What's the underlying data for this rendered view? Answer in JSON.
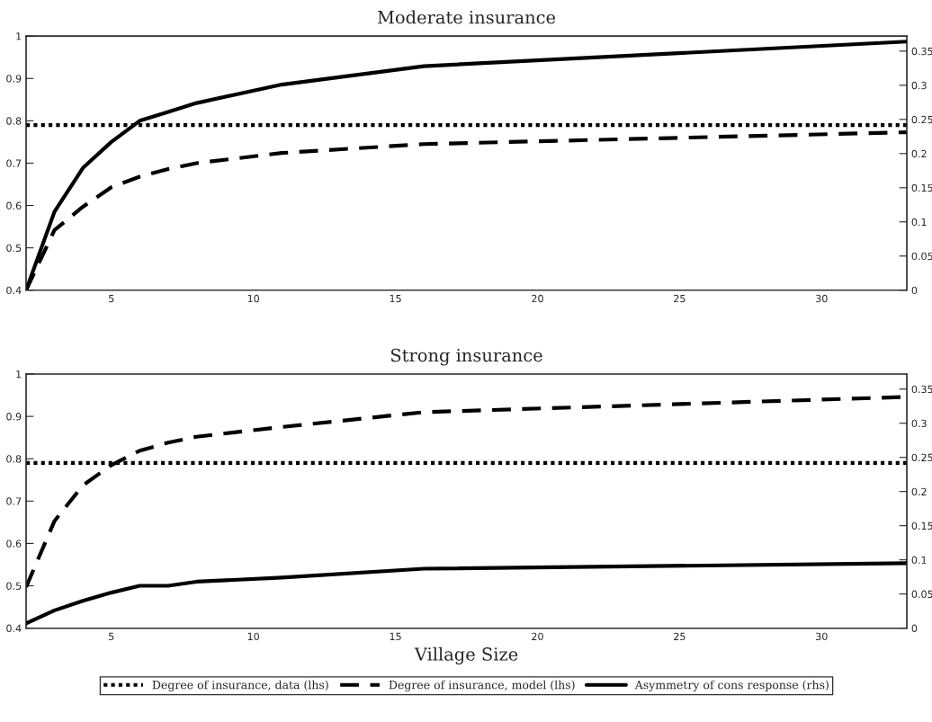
{
  "chart_data": [
    {
      "type": "line",
      "title": "Moderate insurance",
      "x": [
        2,
        3,
        4,
        5,
        6,
        7,
        8,
        11,
        16,
        33
      ],
      "xlim": [
        2,
        33
      ],
      "xticks": [
        5,
        10,
        15,
        20,
        25,
        30
      ],
      "ylim": [
        0.4,
        1
      ],
      "yticks": [
        0.4,
        0.5,
        0.6,
        0.7,
        0.8,
        0.9,
        1
      ],
      "y2lim": [
        0,
        0.372
      ],
      "y2ticks": [
        0,
        0.05,
        0.1,
        0.15,
        0.2,
        0.25,
        0.3,
        0.35
      ],
      "grid": false,
      "series": [
        {
          "color": "#000000",
          "line_style": "dotted",
          "values": [
            0.79,
            0.79,
            0.79,
            0.79,
            0.79,
            0.79,
            0.79,
            0.79,
            0.79,
            0.79
          ]
        },
        {
          "color": "#000000",
          "line_style": "dashed",
          "values": [
            0.4,
            0.542,
            0.597,
            0.643,
            0.668,
            0.686,
            0.7,
            0.724,
            0.745,
            0.773
          ]
        },
        {
          "color": "#000000",
          "line_style": "solid",
          "axis": "y2",
          "values": [
            0,
            0.115,
            0.179,
            0.217,
            0.248,
            0.261,
            0.274,
            0.301,
            0.328,
            0.364
          ]
        }
      ]
    },
    {
      "type": "line",
      "title": "Strong insurance",
      "xlabel": "Village Size",
      "x": [
        2,
        3,
        4,
        5,
        6,
        7,
        8,
        11,
        16,
        33
      ],
      "xlim": [
        2,
        33
      ],
      "xticks": [
        5,
        10,
        15,
        20,
        25,
        30
      ],
      "ylim": [
        0.4,
        1
      ],
      "yticks": [
        0.4,
        0.5,
        0.6,
        0.7,
        0.8,
        0.9,
        1
      ],
      "y2lim": [
        0,
        0.372
      ],
      "y2ticks": [
        0,
        0.05,
        0.1,
        0.15,
        0.2,
        0.25,
        0.3,
        0.35
      ],
      "grid": false,
      "legend": "bottom",
      "series": [
        {
          "name": "Degree of insurance, data (lhs)",
          "color": "#000000",
          "line_style": "dotted",
          "values": [
            0.79,
            0.79,
            0.79,
            0.79,
            0.79,
            0.79,
            0.79,
            0.79,
            0.79,
            0.79
          ]
        },
        {
          "name": "Degree of insurance, model (lhs)",
          "color": "#000000",
          "line_style": "dashed",
          "values": [
            0.497,
            0.653,
            0.737,
            0.785,
            0.819,
            0.838,
            0.852,
            0.875,
            0.91,
            0.946
          ]
        },
        {
          "name": "Asymmetry of cons response (rhs)",
          "color": "#000000",
          "line_style": "solid",
          "axis": "y2",
          "values": [
            0.007,
            0.026,
            0.04,
            0.052,
            0.062,
            0.062,
            0.068,
            0.074,
            0.087,
            0.095
          ]
        }
      ]
    }
  ]
}
